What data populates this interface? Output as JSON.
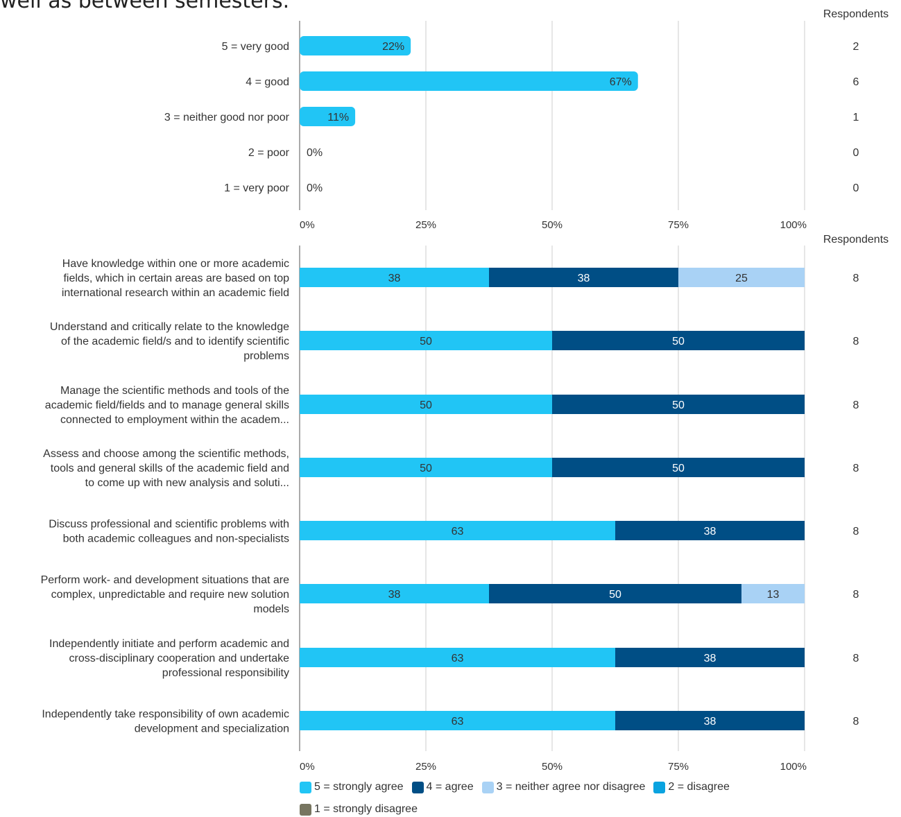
{
  "header": {
    "title_fragment": "well as between semesters."
  },
  "colors": {
    "grid": "#cccccc",
    "axis": "#aaaaaa",
    "text": "#333333",
    "rating_bar": "#21c5f5",
    "strongly_agree": "#21c5f5",
    "agree": "#004e85",
    "neither": "#a9d2f5",
    "disagree": "#0aa3e0",
    "strongly_disagree": "#777560"
  },
  "chart_data": [
    {
      "type": "bar",
      "orientation": "horizontal",
      "right_column_header": "Respondents",
      "categories": [
        "5 = very good",
        "4 = good",
        "3 = neither good nor poor",
        "2 = poor",
        "1 = very poor"
      ],
      "values": [
        22,
        67,
        11,
        0,
        0
      ],
      "value_labels": [
        "22%",
        "67%",
        "11%",
        "0%",
        "0%"
      ],
      "respondents": [
        2,
        6,
        1,
        0,
        0
      ],
      "xlim": [
        0,
        100
      ],
      "xticks": [
        "0%",
        "25%",
        "50%",
        "75%",
        "100%"
      ],
      "grid": true
    },
    {
      "type": "bar",
      "orientation": "horizontal",
      "stacked": true,
      "right_column_header": "Respondents",
      "categories": [
        [
          "Have knowledge within one or more academic",
          "fields, which in certain areas are based on  top",
          "international research within an academic field"
        ],
        [
          "Understand and critically relate to the knowledge",
          "of the academic field/s and to identify scientific",
          "problems"
        ],
        [
          "Manage the scientific methods and tools of the",
          "academic field/fields and to manage general skills",
          "connected to employment within the academ..."
        ],
        [
          "Assess and choose among the scientific methods,",
          "tools and general skills of the academic field and",
          "to come up with new analysis and soluti..."
        ],
        [
          "Discuss professional and scientific problems with",
          "both academic colleagues and non-specialists"
        ],
        [
          "Perform work- and development situations that are",
          "complex, unpredictable and require new solution",
          "models"
        ],
        [
          "Independently initiate and perform academic and",
          "cross-disciplinary cooperation  and undertake",
          "professional responsibility"
        ],
        [
          "Independently take responsibility of own academic",
          "development and specialization"
        ]
      ],
      "series": [
        {
          "name": "5 = strongly agree",
          "color_key": "strongly_agree",
          "values": [
            37.5,
            50,
            50,
            50,
            62.5,
            37.5,
            62.5,
            62.5
          ],
          "labels": [
            "38",
            "50",
            "50",
            "50",
            "63",
            "38",
            "63",
            "63"
          ]
        },
        {
          "name": "4 = agree",
          "color_key": "agree",
          "values": [
            37.5,
            50,
            50,
            50,
            37.5,
            50,
            37.5,
            37.5
          ],
          "labels": [
            "38",
            "50",
            "50",
            "50",
            "38",
            "50",
            "38",
            "38"
          ]
        },
        {
          "name": "3 = neither agree nor disagree",
          "color_key": "neither",
          "values": [
            25,
            0,
            0,
            0,
            0,
            12.5,
            0,
            0
          ],
          "labels": [
            "25",
            "",
            "",
            "",
            "",
            "13",
            "",
            ""
          ]
        },
        {
          "name": "2 = disagree",
          "color_key": "disagree",
          "values": [
            0,
            0,
            0,
            0,
            0,
            0,
            0,
            0
          ],
          "labels": [
            "",
            "",
            "",
            "",
            "",
            "",
            "",
            ""
          ]
        },
        {
          "name": "1 = strongly disagree",
          "color_key": "strongly_disagree",
          "values": [
            0,
            0,
            0,
            0,
            0,
            0,
            0,
            0
          ],
          "labels": [
            "",
            "",
            "",
            "",
            "",
            "",
            "",
            ""
          ]
        }
      ],
      "respondents": [
        8,
        8,
        8,
        8,
        8,
        8,
        8,
        8
      ],
      "xlim": [
        0,
        100
      ],
      "xticks": [
        "0%",
        "25%",
        "50%",
        "75%",
        "100%"
      ],
      "grid": true,
      "legend_position": "bottom"
    }
  ]
}
